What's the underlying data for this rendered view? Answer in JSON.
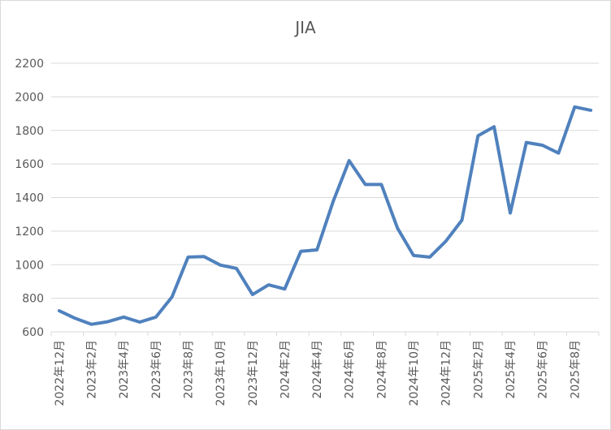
{
  "chart_data": {
    "type": "line",
    "title": "JIA",
    "xlabel": "",
    "ylabel": "",
    "ylim": [
      600,
      2200
    ],
    "yticks": [
      600,
      800,
      1000,
      1200,
      1400,
      1600,
      1800,
      2000,
      2200
    ],
    "grid": true,
    "legend": "none",
    "color": "#4f81bd",
    "categories": [
      "2022年12月",
      "2023年1月",
      "2023年2月",
      "2023年3月",
      "2023年4月",
      "2023年5月",
      "2023年6月",
      "2023年7月",
      "2023年8月",
      "2023年9月",
      "2023年10月",
      "2023年11月",
      "2023年12月",
      "2024年1月",
      "2024年2月",
      "2024年3月",
      "2024年4月",
      "2024年5月",
      "2024年6月",
      "2024年7月",
      "2024年8月",
      "2024年9月",
      "2024年10月",
      "2024年11月",
      "2024年12月",
      "2025年1月",
      "2025年2月",
      "2025年3月",
      "2025年4月",
      "2025年5月",
      "2025年6月",
      "2025年7月",
      "2025年8月",
      "2025年9月"
    ],
    "tick_labels": [
      "2022年12月",
      "2023年2月",
      "2023年4月",
      "2023年6月",
      "2023年8月",
      "2023年10月",
      "2023年12月",
      "2024年2月",
      "2024年4月",
      "2024年6月",
      "2024年8月",
      "2024年10月",
      "2024年12月",
      "2025年2月",
      "2025年4月",
      "2025年6月",
      "2025年8月"
    ],
    "values": [
      725,
      680,
      645,
      660,
      688,
      658,
      688,
      808,
      1045,
      1048,
      998,
      978,
      822,
      880,
      855,
      1080,
      1088,
      1375,
      1620,
      1478,
      1478,
      1218,
      1055,
      1045,
      1140,
      1265,
      1768,
      1822,
      1308,
      1728,
      1712,
      1665,
      1940,
      1920
    ]
  }
}
